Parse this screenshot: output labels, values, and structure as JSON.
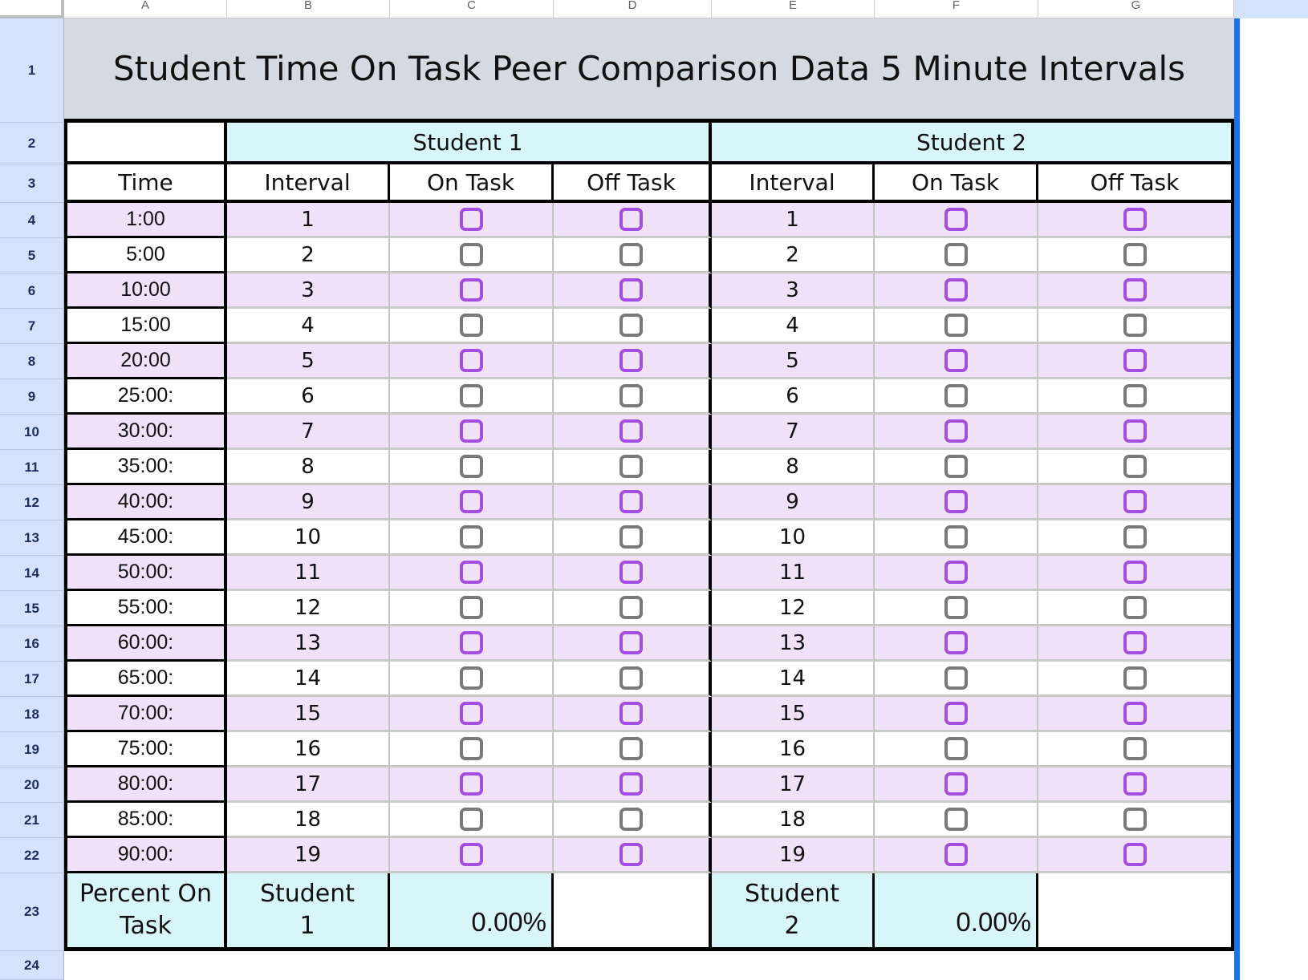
{
  "title": "Student Time On Task Peer Comparison Data 5 Minute Intervals",
  "students": [
    "Student 1",
    "Student 2"
  ],
  "columns": {
    "time": "Time",
    "interval": "Interval",
    "on_task": "On Task",
    "off_task": "Off Task"
  },
  "intervals": [
    {
      "time": "1:00",
      "interval": "1",
      "s1_on": false,
      "s1_off": false,
      "s2_on": false,
      "s2_off": false
    },
    {
      "time": "5:00",
      "interval": "2",
      "s1_on": false,
      "s1_off": false,
      "s2_on": false,
      "s2_off": false
    },
    {
      "time": "10:00",
      "interval": "3",
      "s1_on": false,
      "s1_off": false,
      "s2_on": false,
      "s2_off": false
    },
    {
      "time": "15:00",
      "interval": "4",
      "s1_on": false,
      "s1_off": false,
      "s2_on": false,
      "s2_off": false
    },
    {
      "time": "20:00",
      "interval": "5",
      "s1_on": false,
      "s1_off": false,
      "s2_on": false,
      "s2_off": false
    },
    {
      "time": "25:00:",
      "interval": "6",
      "s1_on": false,
      "s1_off": false,
      "s2_on": false,
      "s2_off": false
    },
    {
      "time": "30:00:",
      "interval": "7",
      "s1_on": false,
      "s1_off": false,
      "s2_on": false,
      "s2_off": false
    },
    {
      "time": "35:00:",
      "interval": "8",
      "s1_on": false,
      "s1_off": false,
      "s2_on": false,
      "s2_off": false
    },
    {
      "time": "40:00:",
      "interval": "9",
      "s1_on": false,
      "s1_off": false,
      "s2_on": false,
      "s2_off": false
    },
    {
      "time": "45:00:",
      "interval": "10",
      "s1_on": false,
      "s1_off": false,
      "s2_on": false,
      "s2_off": false
    },
    {
      "time": "50:00:",
      "interval": "11",
      "s1_on": false,
      "s1_off": false,
      "s2_on": false,
      "s2_off": false
    },
    {
      "time": "55:00:",
      "interval": "12",
      "s1_on": false,
      "s1_off": false,
      "s2_on": false,
      "s2_off": false
    },
    {
      "time": "60:00:",
      "interval": "13",
      "s1_on": false,
      "s1_off": false,
      "s2_on": false,
      "s2_off": false
    },
    {
      "time": "65:00:",
      "interval": "14",
      "s1_on": false,
      "s1_off": false,
      "s2_on": false,
      "s2_off": false
    },
    {
      "time": "70:00:",
      "interval": "15",
      "s1_on": false,
      "s1_off": false,
      "s2_on": false,
      "s2_off": false
    },
    {
      "time": "75:00:",
      "interval": "16",
      "s1_on": false,
      "s1_off": false,
      "s2_on": false,
      "s2_off": false
    },
    {
      "time": "80:00:",
      "interval": "17",
      "s1_on": false,
      "s1_off": false,
      "s2_on": false,
      "s2_off": false
    },
    {
      "time": "85:00:",
      "interval": "18",
      "s1_on": false,
      "s1_off": false,
      "s2_on": false,
      "s2_off": false
    },
    {
      "time": "90:00:",
      "interval": "19",
      "s1_on": false,
      "s1_off": false,
      "s2_on": false,
      "s2_off": false
    }
  ],
  "summary": {
    "label": "Percent On Task",
    "s1_label": "Student 1",
    "s1_value": "0.00%",
    "s2_label": "Student 2",
    "s2_value": "0.00%"
  },
  "sheet_chrome": {
    "column_letters": [
      "A",
      "B",
      "C",
      "D",
      "E",
      "F",
      "G"
    ],
    "visible_rows": 24
  },
  "colors": {
    "title_bg": "#d5d9e0",
    "student_header_bg": "#d8f6fa",
    "band_purple": "#f0e1f8",
    "checkbox_purple": "#a34ee0",
    "checkbox_gray": "#7a7a7a",
    "row_header_bg": "#d6e2fb",
    "row_number_text": "#1c2d5e",
    "selection_blue": "#1a73e8",
    "column_highlight": "#d3e3fd"
  }
}
